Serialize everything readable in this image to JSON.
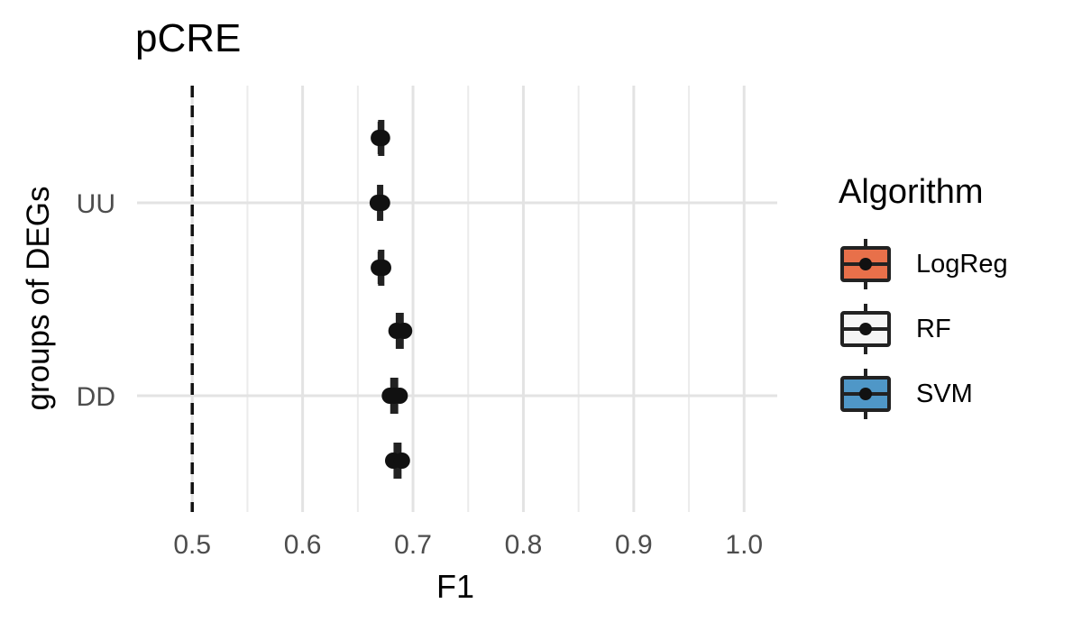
{
  "chart_data": {
    "type": "boxplot",
    "title": "pCRE",
    "xlabel": "F1",
    "ylabel": "groups of DEGs",
    "xlim": [
      0.45,
      1.03
    ],
    "x_ticks": [
      "0.5",
      "0.6",
      "0.7",
      "0.8",
      "0.9",
      "1.0"
    ],
    "categories": [
      "UU",
      "DD"
    ],
    "reference_line_x": 0.5,
    "grid": true,
    "legend_title": "Algorithm",
    "legend_position": "right",
    "series": [
      {
        "name": "LogReg",
        "color": "#E8704A",
        "boxes": [
          {
            "category": "UU",
            "min": 0.669,
            "q1": 0.67,
            "median": 0.67,
            "q3": 0.671,
            "max": 0.672
          },
          {
            "category": "DD",
            "min": 0.685,
            "q1": 0.686,
            "median": 0.688,
            "q3": 0.69,
            "max": 0.692
          }
        ]
      },
      {
        "name": "RF",
        "color": "#F5F5F5",
        "boxes": [
          {
            "category": "UU",
            "min": 0.668,
            "q1": 0.669,
            "median": 0.67,
            "q3": 0.671,
            "max": 0.672
          },
          {
            "category": "DD",
            "min": 0.679,
            "q1": 0.681,
            "median": 0.683,
            "q3": 0.685,
            "max": 0.688
          }
        ]
      },
      {
        "name": "SVM",
        "color": "#4F97C7",
        "boxes": [
          {
            "category": "UU",
            "min": 0.669,
            "q1": 0.67,
            "median": 0.67,
            "q3": 0.671,
            "max": 0.673
          },
          {
            "category": "DD",
            "min": 0.682,
            "q1": 0.684,
            "median": 0.686,
            "q3": 0.688,
            "max": 0.69
          }
        ]
      }
    ]
  }
}
